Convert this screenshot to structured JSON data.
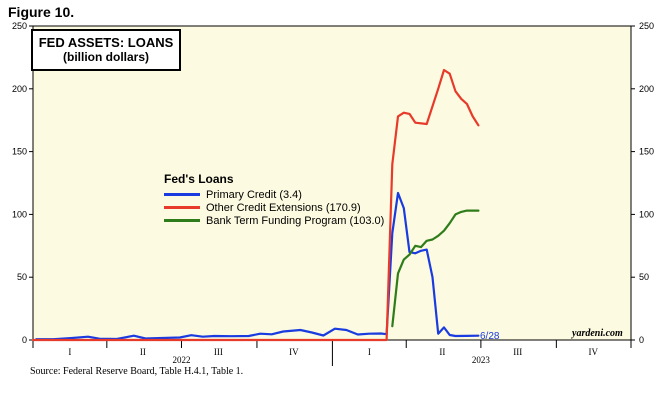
{
  "figure_label": "Figure 10.",
  "source": "Source: Federal Reserve Board, Table H.4.1, Table 1.",
  "watermark": "yardeni.com",
  "end_label": "6/28",
  "colors": {
    "plot_bg": "#fcfae0",
    "primary": "#1a3be0",
    "other": "#e83a2a",
    "btfp": "#2e7d1a"
  },
  "chart_data": {
    "type": "line",
    "title": "FED ASSETS: LOANS",
    "subtitle": "(billion dollars)",
    "legend_title": "Fed's Loans",
    "legend_position": "center-left",
    "grid": false,
    "ylim": [
      0,
      250
    ],
    "yticks": [
      0,
      50,
      100,
      150,
      200,
      250
    ],
    "xlim": [
      "2022-01-01",
      "2023-12-31"
    ],
    "quarter_labels": [
      {
        "label": "I",
        "date": "2022-02-15"
      },
      {
        "label": "II",
        "date": "2022-05-15"
      },
      {
        "label": "III",
        "date": "2022-08-15"
      },
      {
        "label": "IV",
        "date": "2022-11-15"
      },
      {
        "label": "I",
        "date": "2023-02-15"
      },
      {
        "label": "II",
        "date": "2023-05-15"
      },
      {
        "label": "III",
        "date": "2023-08-15"
      },
      {
        "label": "IV",
        "date": "2023-11-15"
      }
    ],
    "year_labels": [
      {
        "label": "2022",
        "date": "2022-07-01"
      },
      {
        "label": "2023",
        "date": "2023-07-01"
      }
    ],
    "series": [
      {
        "name": "Primary Credit (3.4)",
        "color": "#1a3be0",
        "points": [
          [
            "2022-01-05",
            0.6
          ],
          [
            "2022-01-26",
            0.6
          ],
          [
            "2022-02-16",
            1.5
          ],
          [
            "2022-03-09",
            2.6
          ],
          [
            "2022-03-23",
            1.0
          ],
          [
            "2022-04-13",
            0.8
          ],
          [
            "2022-05-04",
            3.4
          ],
          [
            "2022-05-18",
            1.2
          ],
          [
            "2022-06-08",
            1.6
          ],
          [
            "2022-06-29",
            2.0
          ],
          [
            "2022-07-13",
            3.8
          ],
          [
            "2022-07-27",
            2.6
          ],
          [
            "2022-08-10",
            3.2
          ],
          [
            "2022-08-31",
            3.0
          ],
          [
            "2022-09-21",
            3.2
          ],
          [
            "2022-10-05",
            5.0
          ],
          [
            "2022-10-19",
            4.5
          ],
          [
            "2022-11-02",
            6.8
          ],
          [
            "2022-11-23",
            8.0
          ],
          [
            "2022-12-07",
            6.0
          ],
          [
            "2022-12-21",
            3.6
          ],
          [
            "2023-01-04",
            9.0
          ],
          [
            "2023-01-18",
            8.0
          ],
          [
            "2023-02-01",
            4.4
          ],
          [
            "2023-02-15",
            5.0
          ],
          [
            "2023-03-01",
            5.2
          ],
          [
            "2023-03-08",
            4.6
          ],
          [
            "2023-03-15",
            85
          ],
          [
            "2023-03-22",
            117
          ],
          [
            "2023-03-29",
            105
          ],
          [
            "2023-04-05",
            70
          ],
          [
            "2023-04-12",
            69
          ],
          [
            "2023-04-19",
            71
          ],
          [
            "2023-04-26",
            72
          ],
          [
            "2023-05-03",
            50
          ],
          [
            "2023-05-10",
            5
          ],
          [
            "2023-05-17",
            10
          ],
          [
            "2023-05-24",
            4
          ],
          [
            "2023-05-31",
            3.2
          ],
          [
            "2023-06-14",
            3.3
          ],
          [
            "2023-06-28",
            3.4
          ]
        ]
      },
      {
        "name": "Other Credit Extensions (170.9)",
        "color": "#e83a2a",
        "points": [
          [
            "2022-01-01",
            0
          ],
          [
            "2023-03-08",
            0
          ],
          [
            "2023-03-15",
            140
          ],
          [
            "2023-03-22",
            178
          ],
          [
            "2023-03-29",
            181
          ],
          [
            "2023-04-05",
            180
          ],
          [
            "2023-04-12",
            173
          ],
          [
            "2023-04-26",
            172
          ],
          [
            "2023-05-10",
            200
          ],
          [
            "2023-05-17",
            215
          ],
          [
            "2023-05-24",
            212
          ],
          [
            "2023-05-31",
            198
          ],
          [
            "2023-06-07",
            192
          ],
          [
            "2023-06-14",
            188
          ],
          [
            "2023-06-21",
            178
          ],
          [
            "2023-06-28",
            170.9
          ]
        ]
      },
      {
        "name": "Bank Term Funding Program (103.0)",
        "color": "#2e7d1a",
        "points": [
          [
            "2023-03-15",
            11
          ],
          [
            "2023-03-22",
            53
          ],
          [
            "2023-03-29",
            64
          ],
          [
            "2023-04-05",
            68
          ],
          [
            "2023-04-12",
            75
          ],
          [
            "2023-04-19",
            74
          ],
          [
            "2023-04-26",
            79
          ],
          [
            "2023-05-03",
            80
          ],
          [
            "2023-05-10",
            83
          ],
          [
            "2023-05-17",
            87
          ],
          [
            "2023-05-24",
            93
          ],
          [
            "2023-05-31",
            100
          ],
          [
            "2023-06-07",
            102
          ],
          [
            "2023-06-14",
            103
          ],
          [
            "2023-06-28",
            103.0
          ]
        ]
      }
    ]
  }
}
